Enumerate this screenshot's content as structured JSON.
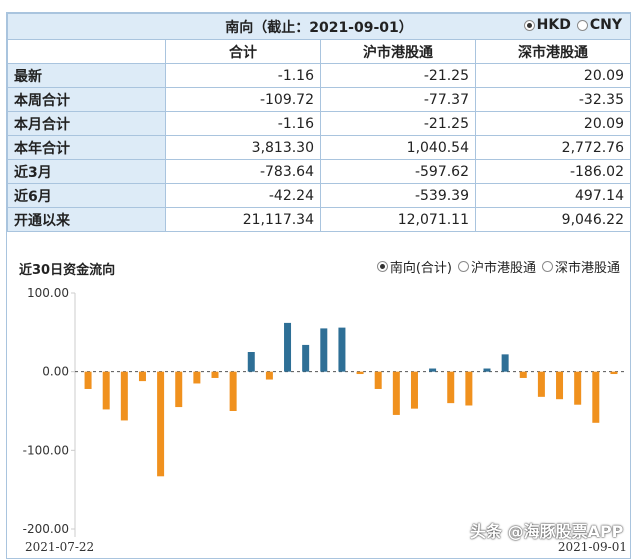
{
  "header": {
    "title": "南向（截止：2021-09-01）",
    "currency_options": [
      {
        "label": "HKD",
        "selected": true
      },
      {
        "label": "CNY",
        "selected": false
      }
    ]
  },
  "table": {
    "columns": [
      "合计",
      "沪市港股通",
      "深市港股通"
    ],
    "rows": [
      {
        "label": "最新",
        "values": [
          "-1.16",
          "-21.25",
          "20.09"
        ]
      },
      {
        "label": "本周合计",
        "values": [
          "-109.72",
          "-77.37",
          "-32.35"
        ]
      },
      {
        "label": "本月合计",
        "values": [
          "-1.16",
          "-21.25",
          "20.09"
        ]
      },
      {
        "label": "本年合计",
        "values": [
          "3,813.30",
          "1,040.54",
          "2,772.76"
        ]
      },
      {
        "label": "近3月",
        "values": [
          "-783.64",
          "-597.62",
          "-186.02"
        ]
      },
      {
        "label": "近6月",
        "values": [
          "-42.24",
          "-539.39",
          "497.14"
        ]
      },
      {
        "label": "开通以来",
        "values": [
          "21,117.34",
          "12,071.11",
          "9,046.22"
        ]
      }
    ]
  },
  "chart_section": {
    "title": "近30日资金流向",
    "series_options": [
      {
        "label": "南向(合计)",
        "selected": true
      },
      {
        "label": "沪市港股通",
        "selected": false
      },
      {
        "label": "深市港股通",
        "selected": false
      }
    ]
  },
  "chart_data": {
    "type": "bar",
    "ylim": [
      -200,
      100
    ],
    "yticks": [
      "100.00",
      "0.00",
      "-100.00",
      "-200.00"
    ],
    "ytick_values": [
      100,
      0,
      -100,
      -200
    ],
    "x_start_label": "2021-07-22",
    "x_end_label": "2021-09-01",
    "values": [
      -22,
      -48,
      -62,
      -12,
      -133,
      -45,
      -15,
      -8,
      -50,
      25,
      -10,
      62,
      34,
      55,
      56,
      -3,
      -22,
      -55,
      -47,
      4,
      -40,
      -43,
      4,
      22,
      -8,
      -32,
      -35,
      -42,
      -65,
      -3
    ],
    "positive_color": "#2e6f96",
    "negative_color": "#f0911e"
  },
  "watermark": "头条 @海豚股票APP"
}
